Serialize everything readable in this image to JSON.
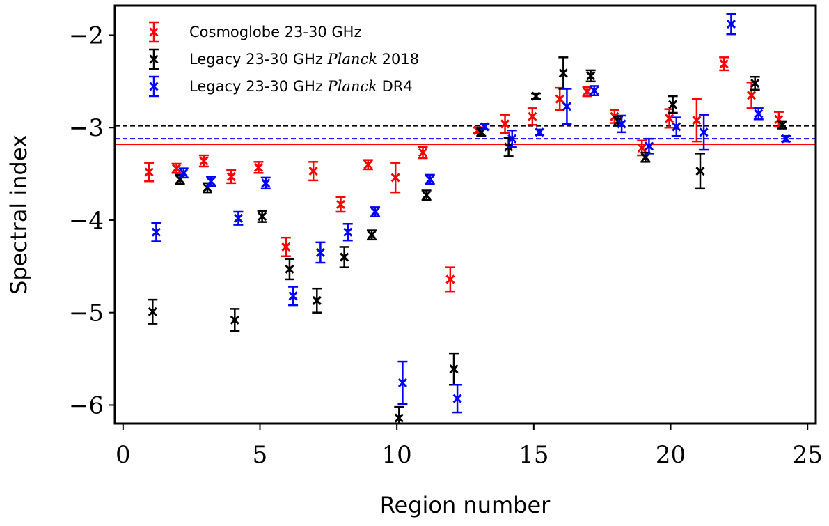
{
  "chart_data": {
    "type": "scatter",
    "xlabel": "Region number",
    "ylabel": "Spectral index",
    "xlim": [
      -0.3,
      25.3
    ],
    "ylim": [
      -6.2,
      -1.68
    ],
    "xticks": [
      0,
      5,
      10,
      15,
      20,
      25
    ],
    "yticks": [
      -6,
      -5,
      -4,
      -3,
      -2
    ],
    "ytick_labels": [
      "−6",
      "−5",
      "−4",
      "−3",
      "−2"
    ],
    "grid": false,
    "legend_position": "top-left",
    "marker": "x with error bars",
    "reference_lines": [
      {
        "y": -2.98,
        "color": "#000000",
        "style": "dashed"
      },
      {
        "y": -3.12,
        "color": "#0000ff",
        "style": "dashed"
      },
      {
        "y": -3.18,
        "color": "#ff0000",
        "style": "solid"
      }
    ],
    "series": [
      {
        "name": "Cosmoglobe 23-30 GHz",
        "legend_parts": [
          "Cosmoglobe 23-30 GHz"
        ],
        "color": "#ff0000",
        "x": [
          0.95,
          1.95,
          2.95,
          3.95,
          4.95,
          5.95,
          6.95,
          7.95,
          8.95,
          9.95,
          10.95,
          11.95,
          12.95,
          13.95,
          14.95,
          15.95,
          16.95,
          17.95,
          18.95,
          19.95,
          20.95,
          21.95,
          22.95,
          23.95
        ],
        "y": [
          -3.48,
          -3.44,
          -3.36,
          -3.53,
          -3.43,
          -4.29,
          -3.47,
          -3.83,
          -3.4,
          -3.54,
          -3.27,
          -4.64,
          -3.03,
          -2.96,
          -2.88,
          -2.69,
          -2.61,
          -2.88,
          -3.22,
          -2.9,
          -2.92,
          -2.31,
          -2.65,
          -2.91
        ],
        "err": [
          0.1,
          0.05,
          0.06,
          0.07,
          0.06,
          0.1,
          0.1,
          0.08,
          0.05,
          0.16,
          0.06,
          0.13,
          0.03,
          0.1,
          0.09,
          0.12,
          0.05,
          0.07,
          0.08,
          0.1,
          0.23,
          0.07,
          0.14,
          0.08
        ]
      },
      {
        "name": "Legacy 23-30 GHz Planck 2018",
        "legend_parts": [
          "Legacy 23-30 GHz ",
          "Planck",
          " 2018"
        ],
        "color": "#000000",
        "x": [
          1.08,
          2.08,
          3.08,
          4.08,
          5.08,
          6.08,
          7.08,
          8.08,
          9.08,
          10.08,
          11.08,
          12.08,
          13.08,
          14.08,
          15.08,
          16.08,
          17.08,
          18.08,
          19.08,
          20.08,
          21.08,
          22.08,
          23.08,
          24.08
        ],
        "y": [
          -4.99,
          -3.56,
          -3.65,
          -5.08,
          -3.96,
          -4.53,
          -4.87,
          -4.4,
          -4.16,
          -6.14,
          -3.73,
          -5.61,
          -3.05,
          -3.21,
          -2.66,
          -2.41,
          -2.44,
          -2.93,
          -3.32,
          -2.75,
          -3.47,
          null,
          -2.52,
          -2.97
        ],
        "err": [
          0.13,
          0.05,
          0.05,
          0.12,
          0.06,
          0.11,
          0.13,
          0.11,
          0.05,
          0.12,
          0.05,
          0.17,
          0.04,
          0.1,
          0.03,
          0.17,
          0.06,
          0.05,
          0.05,
          0.09,
          0.19,
          null,
          0.07,
          0.04
        ]
      },
      {
        "name": "Legacy 23-30 GHz Planck DR4",
        "legend_parts": [
          "Legacy 23-30 GHz ",
          "Planck",
          " DR4"
        ],
        "color": "#0000ff",
        "x": [
          1.21,
          2.21,
          3.21,
          4.21,
          5.21,
          6.21,
          7.21,
          8.21,
          9.21,
          10.21,
          11.21,
          12.21,
          13.21,
          14.21,
          15.21,
          16.21,
          17.21,
          18.21,
          19.21,
          20.21,
          21.21,
          22.21,
          23.21,
          24.21
        ],
        "y": [
          -4.13,
          -3.49,
          -3.58,
          -3.98,
          -3.6,
          -4.82,
          -4.35,
          -4.13,
          -3.91,
          -5.76,
          -3.56,
          -5.93,
          -2.99,
          -3.12,
          -3.05,
          -2.77,
          -2.6,
          -2.96,
          -3.2,
          -2.99,
          -3.05,
          -1.88,
          -2.85,
          -3.12
        ],
        "err": [
          0.1,
          0.05,
          0.05,
          0.07,
          0.06,
          0.1,
          0.11,
          0.09,
          0.05,
          0.23,
          0.05,
          0.15,
          0.03,
          0.09,
          0.03,
          0.19,
          0.05,
          0.09,
          0.08,
          0.1,
          0.19,
          0.11,
          0.06,
          0.03
        ]
      }
    ]
  }
}
